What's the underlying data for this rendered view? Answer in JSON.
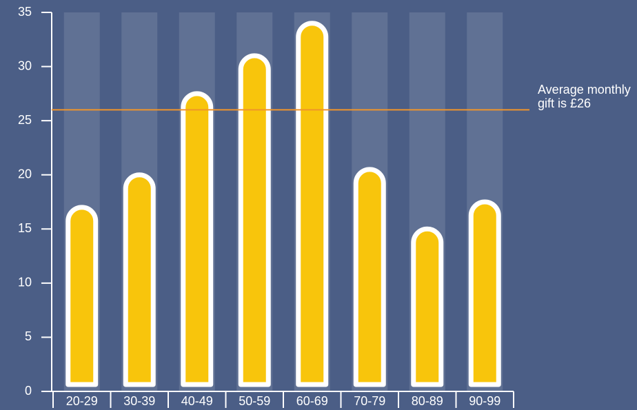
{
  "chart_data": {
    "type": "bar",
    "categories": [
      "20-29",
      "30-39",
      "40-49",
      "50-59",
      "60-69",
      "70-79",
      "80-89",
      "90-99"
    ],
    "values": [
      17,
      20,
      27.5,
      31,
      34,
      20.5,
      15,
      17.5
    ],
    "color": "#f8c50c",
    "ylim": [
      0,
      35
    ],
    "yticks": [
      0,
      5,
      10,
      15,
      20,
      25,
      30,
      35
    ],
    "average": {
      "value": 26,
      "label": "Average monthly gift is £26",
      "color": "#f0952a"
    }
  }
}
